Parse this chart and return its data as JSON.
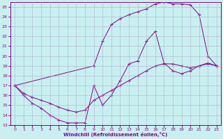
{
  "xlabel": "Windchill (Refroidissement éolien,°C)",
  "bg_color": "#c8f0f0",
  "line_color": "#880088",
  "grid_color": "#aaaacc",
  "xlim": [
    -0.5,
    23.5
  ],
  "ylim": [
    13,
    25.5
  ],
  "xticks": [
    0,
    1,
    2,
    3,
    4,
    5,
    6,
    7,
    8,
    9,
    10,
    11,
    12,
    13,
    14,
    15,
    16,
    17,
    18,
    19,
    20,
    21,
    22,
    23
  ],
  "yticks": [
    13,
    14,
    15,
    16,
    17,
    18,
    19,
    20,
    21,
    22,
    23,
    24,
    25
  ],
  "curves": [
    {
      "x": [
        0,
        1,
        2,
        3,
        4,
        5,
        6,
        7,
        8,
        9,
        10,
        11,
        12,
        13,
        14,
        15,
        16,
        17,
        18,
        19,
        20,
        21,
        22,
        23
      ],
      "y": [
        17,
        16.2,
        15.8,
        15.5,
        15.2,
        14.8,
        14.5,
        14.3,
        14.5,
        15.5,
        16.0,
        16.5,
        17.0,
        17.5,
        18.0,
        18.5,
        19.0,
        19.2,
        19.2,
        19.0,
        18.8,
        19.0,
        19.2,
        19.0
      ]
    },
    {
      "x": [
        0,
        1,
        2,
        3,
        4,
        5,
        6,
        7,
        8,
        9,
        10,
        11,
        12,
        13,
        14,
        15,
        16,
        17,
        18,
        19,
        20,
        21,
        22,
        23
      ],
      "y": [
        17,
        16.0,
        15.2,
        14.7,
        14.0,
        13.5,
        13.2,
        13.2,
        13.2,
        17.0,
        15.0,
        16.0,
        17.5,
        19.2,
        19.5,
        21.5,
        22.5,
        19.3,
        18.5,
        18.2,
        18.5,
        19.0,
        19.3,
        19.0
      ]
    },
    {
      "x": [
        0,
        9,
        10,
        11,
        12,
        13,
        14,
        15,
        16,
        17,
        18,
        19,
        20,
        21,
        22,
        23
      ],
      "y": [
        17,
        19.0,
        21.5,
        23.2,
        23.8,
        24.2,
        24.5,
        24.8,
        25.3,
        25.5,
        25.3,
        25.3,
        25.2,
        24.2,
        20.0,
        19.0
      ]
    }
  ]
}
